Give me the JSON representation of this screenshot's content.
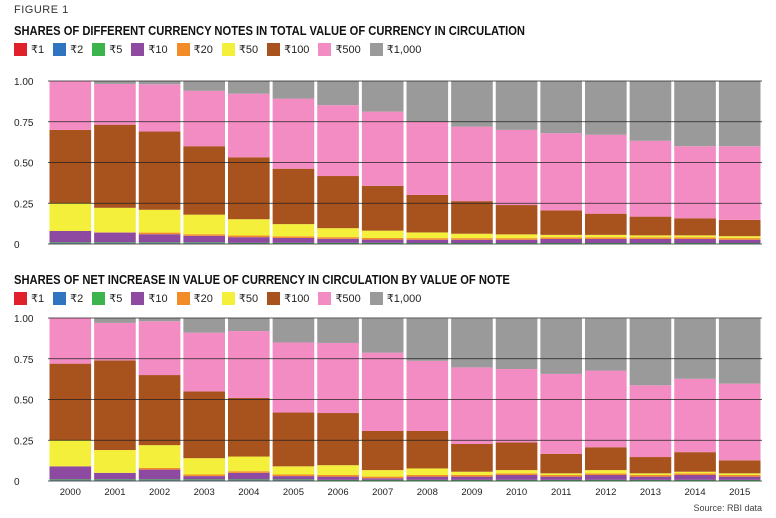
{
  "figure_label": "FIGURE 1",
  "source": "Source: RBI data",
  "legend": [
    {
      "label": "₹1",
      "color": "#e0202a"
    },
    {
      "label": "₹2",
      "color": "#2f74c0"
    },
    {
      "label": "₹5",
      "color": "#3cb44b"
    },
    {
      "label": "₹10",
      "color": "#8e4aa0"
    },
    {
      "label": "₹20",
      "color": "#f28c28"
    },
    {
      "label": "₹50",
      "color": "#f3ef3a"
    },
    {
      "label": "₹100",
      "color": "#a8521e"
    },
    {
      "label": "₹500",
      "color": "#f48cc4"
    },
    {
      "label": "₹1,000",
      "color": "#9a9a9a"
    }
  ],
  "chart_data": [
    {
      "type": "bar",
      "stacked": true,
      "title": "SHARES OF DIFFERENT CURRENCY NOTES IN TOTAL VALUE OF CURRENCY IN CIRCULATION",
      "categories": [
        "2000",
        "2001",
        "2002",
        "2003",
        "2004",
        "2005",
        "2006",
        "2007",
        "2008",
        "2009",
        "2010",
        "2011",
        "2012",
        "2013",
        "2014",
        "2015"
      ],
      "ylim": [
        0,
        1
      ],
      "yticks": [
        "0",
        "0.25",
        "0.50",
        "0.75",
        "1.00"
      ],
      "grid": true,
      "legend_position": "top-left",
      "series": [
        {
          "name": "₹1",
          "values": [
            0.002,
            0.002,
            0.002,
            0.002,
            0.001,
            0.001,
            0.001,
            0.001,
            0.001,
            0.001,
            0.001,
            0.001,
            0.001,
            0.001,
            0.001,
            0.001
          ]
        },
        {
          "name": "₹2",
          "values": [
            0.003,
            0.003,
            0.003,
            0.003,
            0.002,
            0.002,
            0.002,
            0.002,
            0.002,
            0.002,
            0.002,
            0.002,
            0.002,
            0.002,
            0.002,
            0.002
          ]
        },
        {
          "name": "₹5",
          "values": [
            0.005,
            0.005,
            0.005,
            0.005,
            0.004,
            0.004,
            0.004,
            0.004,
            0.003,
            0.003,
            0.003,
            0.003,
            0.003,
            0.003,
            0.003,
            0.003
          ]
        },
        {
          "name": "₹10",
          "values": [
            0.07,
            0.06,
            0.05,
            0.04,
            0.035,
            0.03,
            0.025,
            0.02,
            0.02,
            0.02,
            0.02,
            0.025,
            0.025,
            0.025,
            0.025,
            0.02
          ]
        },
        {
          "name": "₹20",
          "values": [
            0.0,
            0.002,
            0.01,
            0.01,
            0.01,
            0.01,
            0.01,
            0.01,
            0.01,
            0.01,
            0.01,
            0.01,
            0.01,
            0.01,
            0.01,
            0.01
          ]
        },
        {
          "name": "₹50",
          "values": [
            0.17,
            0.15,
            0.14,
            0.12,
            0.1,
            0.075,
            0.055,
            0.045,
            0.035,
            0.027,
            0.023,
            0.015,
            0.015,
            0.012,
            0.012,
            0.012
          ]
        },
        {
          "name": "₹100",
          "values": [
            0.45,
            0.51,
            0.48,
            0.42,
            0.38,
            0.34,
            0.32,
            0.275,
            0.23,
            0.2,
            0.18,
            0.15,
            0.13,
            0.115,
            0.105,
            0.1
          ]
        },
        {
          "name": "₹500",
          "values": [
            0.3,
            0.25,
            0.29,
            0.34,
            0.39,
            0.43,
            0.435,
            0.455,
            0.45,
            0.457,
            0.461,
            0.474,
            0.484,
            0.465,
            0.442,
            0.452
          ]
        },
        {
          "name": "₹1,000",
          "values": [
            0.0,
            0.018,
            0.02,
            0.06,
            0.078,
            0.108,
            0.148,
            0.188,
            0.249,
            0.28,
            0.3,
            0.32,
            0.33,
            0.367,
            0.4,
            0.4
          ]
        }
      ]
    },
    {
      "type": "bar",
      "stacked": true,
      "title": "SHARES OF NET INCREASE IN VALUE OF CURRENCY IN CIRCULATION BY VALUE OF NOTE",
      "categories": [
        "2000",
        "2001",
        "2002",
        "2003",
        "2004",
        "2005",
        "2006",
        "2007",
        "2008",
        "2009",
        "2010",
        "2011",
        "2012",
        "2013",
        "2014",
        "2015"
      ],
      "ylim": [
        0,
        1
      ],
      "yticks": [
        "0",
        "0.25",
        "0.50",
        "0.75",
        "1.00"
      ],
      "grid": true,
      "legend_position": "top-left",
      "series": [
        {
          "name": "₹1",
          "values": [
            0.002,
            0.002,
            0.002,
            0.002,
            0.002,
            0.002,
            0.001,
            0.001,
            0.001,
            0.001,
            0.001,
            0.001,
            0.001,
            0.001,
            0.001,
            0.001
          ]
        },
        {
          "name": "₹2",
          "values": [
            0.003,
            0.003,
            0.003,
            0.003,
            0.003,
            0.003,
            0.002,
            0.002,
            0.002,
            0.002,
            0.002,
            0.002,
            0.002,
            0.002,
            0.002,
            0.002
          ]
        },
        {
          "name": "₹5",
          "values": [
            0.005,
            0.005,
            0.005,
            0.005,
            0.005,
            0.005,
            0.004,
            0.004,
            0.004,
            0.004,
            0.004,
            0.004,
            0.004,
            0.004,
            0.004,
            0.004
          ]
        },
        {
          "name": "₹10",
          "values": [
            0.08,
            0.04,
            0.06,
            0.02,
            0.04,
            0.02,
            0.02,
            0.01,
            0.02,
            0.02,
            0.03,
            0.02,
            0.03,
            0.02,
            0.03,
            0.02
          ]
        },
        {
          "name": "₹20",
          "values": [
            0.0,
            0.0,
            0.01,
            0.01,
            0.01,
            0.01,
            0.01,
            0.01,
            0.01,
            0.01,
            0.01,
            0.01,
            0.01,
            0.01,
            0.01,
            0.01
          ]
        },
        {
          "name": "₹50",
          "values": [
            0.16,
            0.14,
            0.14,
            0.1,
            0.09,
            0.05,
            0.06,
            0.04,
            0.04,
            0.02,
            0.02,
            0.01,
            0.02,
            0.01,
            0.01,
            0.01
          ]
        },
        {
          "name": "₹100",
          "values": [
            0.47,
            0.55,
            0.43,
            0.41,
            0.36,
            0.33,
            0.32,
            0.24,
            0.23,
            0.17,
            0.17,
            0.12,
            0.14,
            0.1,
            0.12,
            0.08
          ]
        },
        {
          "name": "₹500",
          "values": [
            0.28,
            0.23,
            0.33,
            0.36,
            0.41,
            0.43,
            0.43,
            0.48,
            0.43,
            0.47,
            0.45,
            0.49,
            0.47,
            0.44,
            0.45,
            0.47
          ]
        },
        {
          "name": "₹1,000",
          "values": [
            0.0,
            0.03,
            0.02,
            0.09,
            0.08,
            0.15,
            0.15,
            0.21,
            0.26,
            0.3,
            0.31,
            0.34,
            0.32,
            0.41,
            0.37,
            0.4
          ]
        }
      ]
    }
  ]
}
